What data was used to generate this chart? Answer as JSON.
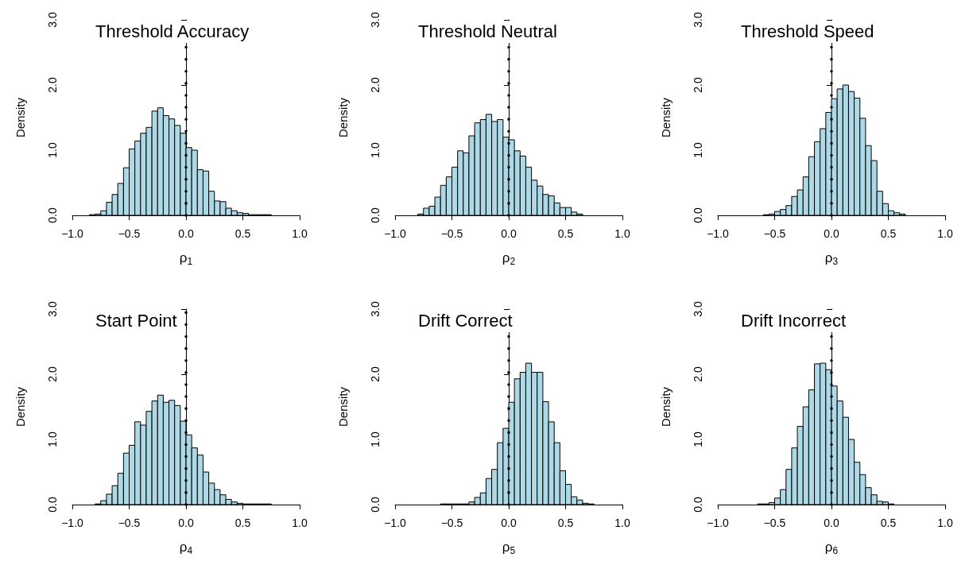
{
  "chart_data": [
    {
      "type": "histogram",
      "title": "Threshold Accuracy",
      "xlabel": "ρ$_{1}$",
      "ylabel": "Density",
      "color": "#add8e6",
      "bins": [
        -0.85,
        -0.8,
        -0.75,
        -0.7,
        -0.65,
        -0.6,
        -0.55,
        -0.5,
        -0.45,
        -0.4,
        -0.35,
        -0.3,
        -0.25,
        -0.2,
        -0.15,
        -0.1,
        -0.05,
        0,
        0.05,
        0.1,
        0.15,
        0.2,
        0.25,
        0.3,
        0.35,
        0.4,
        0.45,
        0.5,
        0.55,
        0.6,
        0.65,
        0.7,
        0.75
      ],
      "values": [
        0.01,
        0.02,
        0.07,
        0.2,
        0.32,
        0.49,
        0.73,
        1.02,
        1.14,
        1.26,
        1.35,
        1.6,
        1.65,
        1.53,
        1.48,
        1.38,
        1.26,
        1.04,
        1.0,
        0.7,
        0.68,
        0.37,
        0.22,
        0.21,
        0.11,
        0.07,
        0.04,
        0.03,
        0.01,
        0.01,
        0.01,
        0.01
      ],
      "xlim": [
        -1,
        1
      ],
      "xticks": [
        {
          "value": -1,
          "label": "−1.0"
        },
        {
          "value": -0.5,
          "label": "−0.5"
        },
        {
          "value": 0,
          "label": "0.0"
        },
        {
          "value": 0.5,
          "label": "0.5"
        },
        {
          "value": 1,
          "label": "1.0"
        }
      ],
      "ylim": [
        0,
        3
      ],
      "yticks": [
        {
          "value": 0,
          "label": "0.0"
        },
        {
          "value": 1,
          "label": "1.0"
        },
        {
          "value": 2,
          "label": "2.0"
        },
        {
          "value": 3,
          "label": "3.0"
        }
      ],
      "ref_lines": [
        {
          "axis": "x",
          "value": 0,
          "line_style": "dotted",
          "color": "#000000"
        }
      ],
      "grid": false
    },
    {
      "type": "histogram",
      "title": "Threshold Neutral",
      "xlabel": "ρ$_{2}$",
      "ylabel": "Density",
      "color": "#add8e6",
      "bins": [
        -0.8,
        -0.75,
        -0.7,
        -0.65,
        -0.6,
        -0.55,
        -0.5,
        -0.45,
        -0.4,
        -0.35,
        -0.3,
        -0.25,
        -0.2,
        -0.15,
        -0.1,
        -0.05,
        0,
        0.05,
        0.1,
        0.15,
        0.2,
        0.25,
        0.3,
        0.35,
        0.4,
        0.45,
        0.5,
        0.55,
        0.6,
        0.65
      ],
      "values": [
        0.02,
        0.11,
        0.14,
        0.28,
        0.46,
        0.59,
        0.74,
        0.99,
        0.96,
        1.22,
        1.42,
        1.47,
        1.55,
        1.44,
        1.47,
        1.2,
        1.16,
        0.99,
        0.91,
        0.74,
        0.54,
        0.45,
        0.32,
        0.3,
        0.19,
        0.12,
        0.12,
        0.05,
        0.02
      ],
      "xlim": [
        -1,
        1
      ],
      "xticks": [
        {
          "value": -1,
          "label": "−1.0"
        },
        {
          "value": -0.5,
          "label": "−0.5"
        },
        {
          "value": 0,
          "label": "0.0"
        },
        {
          "value": 0.5,
          "label": "0.5"
        },
        {
          "value": 1,
          "label": "1.0"
        }
      ],
      "ylim": [
        0,
        3
      ],
      "yticks": [
        {
          "value": 0,
          "label": "0.0"
        },
        {
          "value": 1,
          "label": "1.0"
        },
        {
          "value": 2,
          "label": "2.0"
        },
        {
          "value": 3,
          "label": "3.0"
        }
      ],
      "ref_lines": [
        {
          "axis": "x",
          "value": 0,
          "line_style": "dotted",
          "color": "#000000"
        }
      ],
      "grid": false
    },
    {
      "type": "histogram",
      "title": "Threshold Speed",
      "xlabel": "ρ$_{3}$",
      "ylabel": "Density",
      "color": "#add8e6",
      "bins": [
        -0.6,
        -0.55,
        -0.5,
        -0.45,
        -0.4,
        -0.35,
        -0.3,
        -0.25,
        -0.2,
        -0.15,
        -0.1,
        -0.05,
        0,
        0.05,
        0.1,
        0.15,
        0.2,
        0.25,
        0.3,
        0.35,
        0.4,
        0.45,
        0.5,
        0.55,
        0.6,
        0.65
      ],
      "values": [
        0.01,
        0.02,
        0.06,
        0.09,
        0.15,
        0.29,
        0.39,
        0.59,
        0.9,
        1.13,
        1.33,
        1.58,
        1.79,
        1.94,
        2.0,
        1.9,
        1.8,
        1.49,
        1.07,
        0.84,
        0.37,
        0.18,
        0.07,
        0.04,
        0.02
      ],
      "xlim": [
        -1,
        1
      ],
      "xticks": [
        {
          "value": -1,
          "label": "−1.0"
        },
        {
          "value": -0.5,
          "label": "−0.5"
        },
        {
          "value": 0,
          "label": "0.0"
        },
        {
          "value": 0.5,
          "label": "0.5"
        },
        {
          "value": 1,
          "label": "1.0"
        }
      ],
      "ylim": [
        0,
        3
      ],
      "yticks": [
        {
          "value": 0,
          "label": "0.0"
        },
        {
          "value": 1,
          "label": "1.0"
        },
        {
          "value": 2,
          "label": "2.0"
        },
        {
          "value": 3,
          "label": "3.0"
        }
      ],
      "ref_lines": [
        {
          "axis": "x",
          "value": 0,
          "line_style": "dotted",
          "color": "#000000"
        }
      ],
      "grid": false
    },
    {
      "type": "histogram",
      "title": "Start Point",
      "xlabel": "ρ$_{4}$",
      "ylabel": "Density",
      "color": "#add8e6",
      "bins": [
        -0.8,
        -0.75,
        -0.7,
        -0.65,
        -0.6,
        -0.55,
        -0.5,
        -0.45,
        -0.4,
        -0.35,
        -0.3,
        -0.25,
        -0.2,
        -0.15,
        -0.1,
        -0.05,
        0,
        0.05,
        0.1,
        0.15,
        0.2,
        0.25,
        0.3,
        0.35,
        0.4,
        0.45,
        0.5,
        0.55,
        0.6,
        0.65,
        0.7,
        0.75
      ],
      "values": [
        0.01,
        0.06,
        0.16,
        0.29,
        0.48,
        0.79,
        0.91,
        1.27,
        1.22,
        1.43,
        1.59,
        1.68,
        1.57,
        1.6,
        1.52,
        1.28,
        1.07,
        0.87,
        0.76,
        0.5,
        0.33,
        0.23,
        0.15,
        0.08,
        0.04,
        0.02,
        0.01,
        0.01,
        0.01,
        0.01,
        0.01
      ],
      "xlim": [
        -1,
        1
      ],
      "xticks": [
        {
          "value": -1,
          "label": "−1.0"
        },
        {
          "value": -0.5,
          "label": "−0.5"
        },
        {
          "value": 0,
          "label": "0.0"
        },
        {
          "value": 0.5,
          "label": "0.5"
        },
        {
          "value": 1,
          "label": "1.0"
        }
      ],
      "ylim": [
        0,
        3
      ],
      "yticks": [
        {
          "value": 0,
          "label": "0.0"
        },
        {
          "value": 1,
          "label": "1.0"
        },
        {
          "value": 2,
          "label": "2.0"
        },
        {
          "value": 3,
          "label": "3.0"
        }
      ],
      "ref_lines": [
        {
          "axis": "x",
          "value": 0,
          "line_style": "dotted",
          "color": "#000000"
        }
      ],
      "grid": false
    },
    {
      "type": "histogram",
      "title": "Drift Correct",
      "xlabel": "ρ$_{5}$",
      "ylabel": "Density",
      "color": "#add8e6",
      "bins": [
        -0.6,
        -0.55,
        -0.5,
        -0.45,
        -0.4,
        -0.35,
        -0.3,
        -0.25,
        -0.2,
        -0.15,
        -0.1,
        -0.05,
        0,
        0.05,
        0.1,
        0.15,
        0.2,
        0.25,
        0.3,
        0.35,
        0.4,
        0.45,
        0.5,
        0.55,
        0.6,
        0.65,
        0.7,
        0.75
      ],
      "values": [
        0.01,
        0.01,
        0.01,
        0.01,
        0.01,
        0.04,
        0.11,
        0.18,
        0.4,
        0.54,
        0.95,
        1.17,
        1.57,
        1.93,
        2.03,
        2.17,
        2.03,
        2.03,
        1.58,
        1.27,
        0.95,
        0.52,
        0.31,
        0.12,
        0.07,
        0.02,
        0.01
      ],
      "xlim": [
        -1,
        1
      ],
      "xticks": [
        {
          "value": -1,
          "label": "−1.0"
        },
        {
          "value": -0.5,
          "label": "−0.5"
        },
        {
          "value": 0,
          "label": "0.0"
        },
        {
          "value": 0.5,
          "label": "0.5"
        },
        {
          "value": 1,
          "label": "1.0"
        }
      ],
      "ylim": [
        0,
        3
      ],
      "yticks": [
        {
          "value": 0,
          "label": "0.0"
        },
        {
          "value": 1,
          "label": "1.0"
        },
        {
          "value": 2,
          "label": "2.0"
        },
        {
          "value": 3,
          "label": "3.0"
        }
      ],
      "ref_lines": [
        {
          "axis": "x",
          "value": 0,
          "line_style": "dotted",
          "color": "#000000"
        }
      ],
      "grid": false
    },
    {
      "type": "histogram",
      "title": "Drift Incorrect",
      "xlabel": "ρ$_{6}$",
      "ylabel": "Density",
      "color": "#add8e6",
      "bins": [
        -0.65,
        -0.6,
        -0.55,
        -0.5,
        -0.45,
        -0.4,
        -0.35,
        -0.3,
        -0.25,
        -0.2,
        -0.15,
        -0.1,
        -0.05,
        0,
        0.05,
        0.1,
        0.15,
        0.2,
        0.25,
        0.3,
        0.35,
        0.4,
        0.45,
        0.5,
        0.55
      ],
      "values": [
        0.01,
        0.01,
        0.03,
        0.1,
        0.23,
        0.54,
        0.87,
        1.2,
        1.5,
        1.76,
        2.16,
        2.17,
        2.07,
        1.82,
        1.59,
        1.34,
        1.0,
        0.65,
        0.46,
        0.26,
        0.15,
        0.05,
        0.04,
        0.01
      ],
      "xlim": [
        -1,
        1
      ],
      "xticks": [
        {
          "value": -1,
          "label": "−1.0"
        },
        {
          "value": -0.5,
          "label": "−0.5"
        },
        {
          "value": 0,
          "label": "0.0"
        },
        {
          "value": 0.5,
          "label": "0.5"
        },
        {
          "value": 1,
          "label": "1.0"
        }
      ],
      "ylim": [
        0,
        3
      ],
      "yticks": [
        {
          "value": 0,
          "label": "0.0"
        },
        {
          "value": 1,
          "label": "1.0"
        },
        {
          "value": 2,
          "label": "2.0"
        },
        {
          "value": 3,
          "label": "3.0"
        }
      ],
      "ref_lines": [
        {
          "axis": "x",
          "value": 0,
          "line_style": "dotted",
          "color": "#000000"
        }
      ],
      "grid": false
    }
  ]
}
